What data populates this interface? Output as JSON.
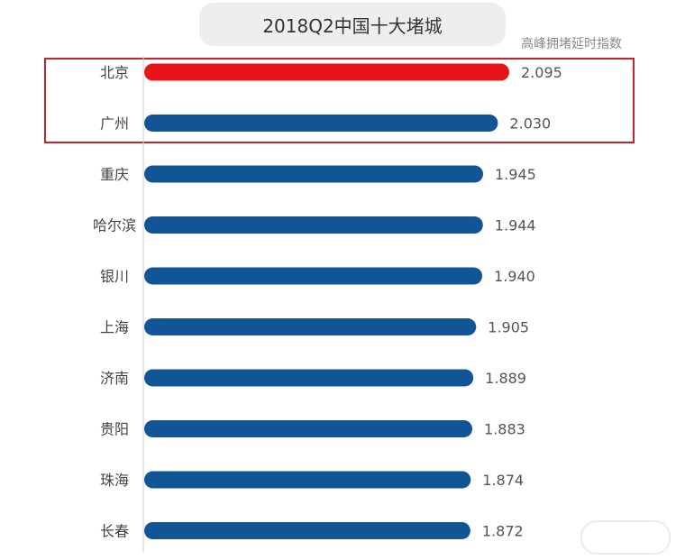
{
  "chart_data": {
    "type": "bar",
    "orientation": "horizontal",
    "title": "2018Q2中国十大堵城",
    "value_label": "高峰拥堵延时指数",
    "categories": [
      "北京",
      "广州",
      "重庆",
      "哈尔滨",
      "银川",
      "上海",
      "济南",
      "贵阳",
      "珠海",
      "长春"
    ],
    "values": [
      2.095,
      2.03,
      1.945,
      1.944,
      1.94,
      1.905,
      1.889,
      1.883,
      1.874,
      1.872
    ],
    "value_labels": [
      "2.095",
      "2.030",
      "1.945",
      "1.944",
      "1.940",
      "1.905",
      "1.889",
      "1.883",
      "1.874",
      "1.872"
    ],
    "highlight": [
      "北京",
      "广州"
    ],
    "colors": {
      "highlight_bar": "#e8141b",
      "bar": "#125597",
      "highlight_box": "#c8232c",
      "axis": "#cccccc",
      "category_text": "#444444",
      "value_text": "#555555"
    },
    "grid": false,
    "legend": "none"
  }
}
